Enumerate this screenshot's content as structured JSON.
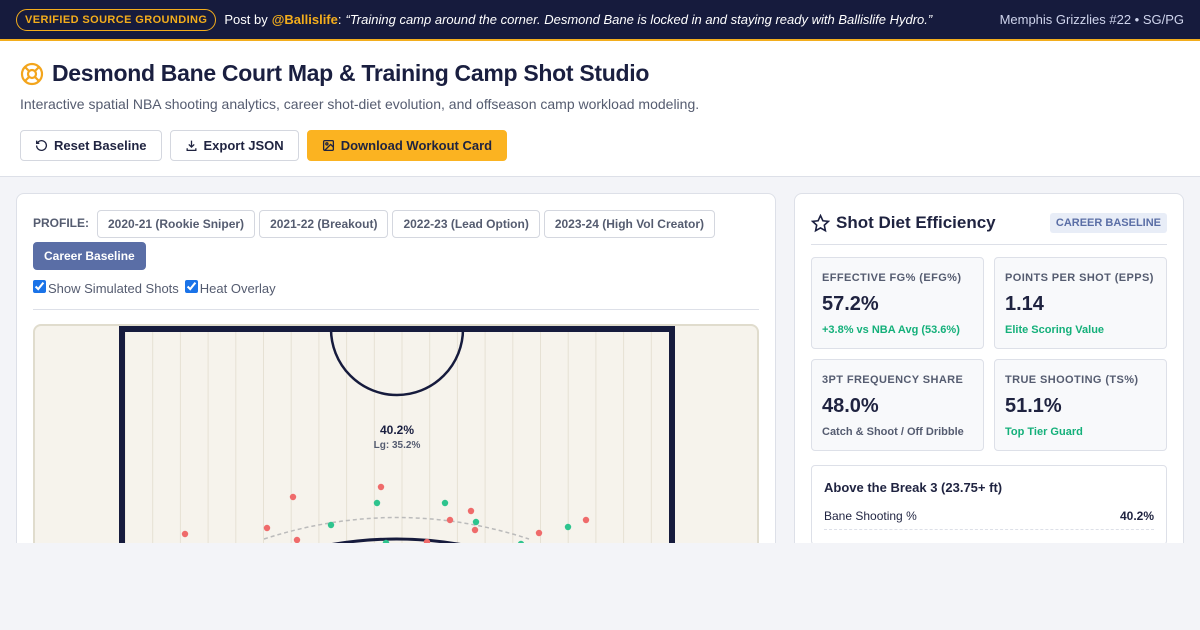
{
  "banner": {
    "badge": "VERIFIED SOURCE GROUNDING",
    "post_prefix": "Post by",
    "handle": "@Ballislife",
    "separator": ":",
    "quote": "“Training camp around the corner. Desmond Bane is locked in and staying ready with Ballislife Hydro.”",
    "player_tag": "Memphis Grizzlies #22 • SG/PG"
  },
  "header": {
    "title": "Desmond Bane Court Map & Training Camp Shot Studio",
    "subtitle": "Interactive spatial NBA shooting analytics, career shot-diet evolution, and offseason camp workload modeling.",
    "buttons": [
      "Reset Baseline",
      "Export JSON",
      "Download Workout Card"
    ]
  },
  "profile": {
    "label": "PROFILE:",
    "options": [
      "2020-21 (Rookie Sniper)",
      "2021-22 (Breakout)",
      "2022-23 (Lead Option)",
      "2023-24 (High Vol Creator)",
      "Career Baseline"
    ],
    "toggles": [
      "Show Simulated Shots",
      "Heat Overlay"
    ]
  },
  "court": {
    "zone_pct": "40.2%",
    "league_pct": "Lg: 35.2%"
  },
  "efficiency": {
    "title": "Shot Diet Efficiency",
    "badge": "CAREER BASELINE",
    "metrics": [
      {
        "label": "EFFECTIVE FG% (EFG%)",
        "value": "57.2%",
        "note": "+3.8% vs NBA Avg (53.6%)"
      },
      {
        "label": "POINTS PER SHOT (EPPS)",
        "value": "1.14",
        "note": "Elite Scoring Value"
      },
      {
        "label": "3PT FREQUENCY SHARE",
        "value": "48.0%",
        "note": "Catch & Shoot / Off Dribble"
      },
      {
        "label": "TRUE SHOOTING (TS%)",
        "value": "51.1%",
        "note": "Top Tier Guard"
      }
    ]
  },
  "zone_detail": {
    "title": "Above the Break 3 (23.75+ ft)",
    "rows": [
      [
        "Bane Shooting %",
        "40.2%"
      ]
    ]
  }
}
